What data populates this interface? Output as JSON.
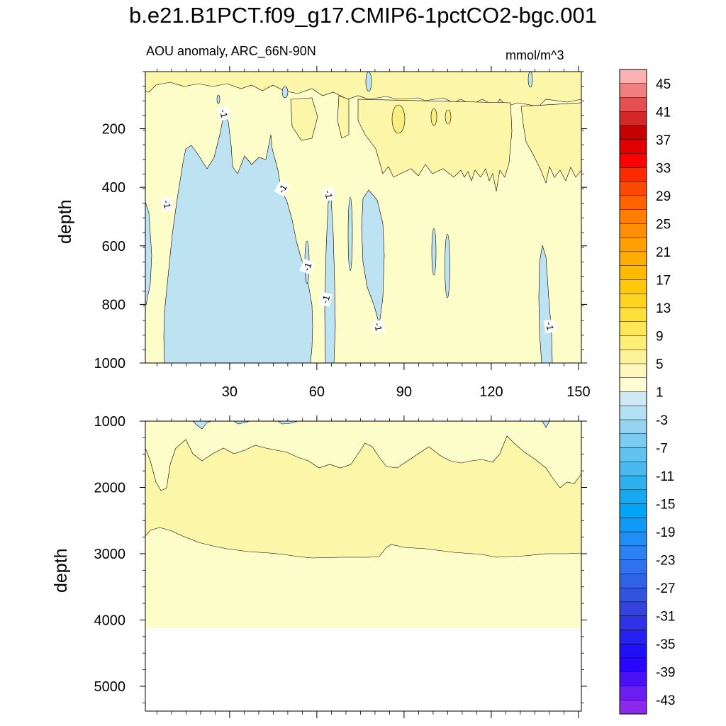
{
  "title": "b.e21.B1PCT.f09_g17.CMIP6-1pctCO2-bgc.001",
  "chart_data": {
    "type": "heatmap",
    "subtitle": "AOU anomaly, ARC_66N-90N",
    "units": "mmol/m^3",
    "xlabel": "",
    "ylabel": "depth",
    "x_ticks": [
      30,
      60,
      90,
      120,
      150
    ],
    "xlim": [
      1,
      151
    ],
    "panels": [
      {
        "name": "upper",
        "ylim": [
          1000,
          5
        ],
        "y_ticks": [
          200,
          400,
          600,
          800,
          1000
        ],
        "show_x_tick_labels": true
      },
      {
        "name": "lower",
        "ylim": [
          5375,
          1000
        ],
        "y_ticks": [
          1000,
          2000,
          3000,
          4000,
          5000
        ],
        "show_x_tick_labels": false
      }
    ],
    "colorbar": {
      "labels": [
        "45",
        "41",
        "37",
        "33",
        "29",
        "25",
        "21",
        "17",
        "13",
        "9",
        "5",
        "1",
        "-3",
        "-7",
        "-11",
        "-15",
        "-19",
        "-23",
        "-27",
        "-31",
        "-35",
        "-39",
        "-43"
      ],
      "colors": [
        "#fbb2b2",
        "#f08080",
        "#e35050",
        "#d42828",
        "#c40000",
        "#e00000",
        "#ff0000",
        "#ff2a00",
        "#ff4800",
        "#ff6400",
        "#ff7d00",
        "#ff8f00",
        "#ff9f00",
        "#ffad00",
        "#ffba00",
        "#ffc80a",
        "#ffd41e",
        "#ffdf3a",
        "#ffe757",
        "#fdee78",
        "#fcf29a",
        "#fdf8bc",
        "#fffdd2",
        "#cfe8f3",
        "#b3e0f3",
        "#96d3f0",
        "#7ccbf0",
        "#62c2f0",
        "#4ab9ef",
        "#30b1ef",
        "#15aaf0",
        "#00a5f5",
        "#0f9af7",
        "#1f8ef5",
        "#2d82f3",
        "#2f72ec",
        "#3062e6",
        "#3253e0",
        "#3443dd",
        "#2f32e6",
        "#2621f0",
        "#2010f8",
        "#2a05ff",
        "#4a10f5",
        "#6a1ef0",
        "#8a2aeb"
      ]
    },
    "contour_labels": [
      "-1",
      "-1",
      "-1",
      "-1",
      "-1",
      "-1",
      "-1",
      "-1"
    ]
  }
}
